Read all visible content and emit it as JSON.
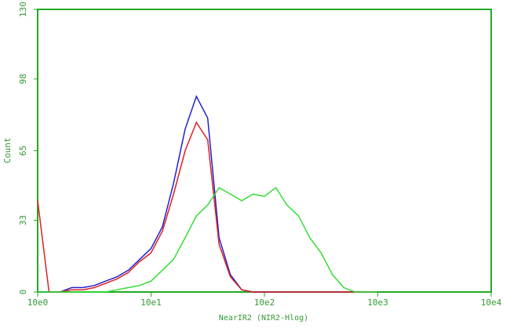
{
  "chart_data": {
    "type": "line",
    "x_label": "NearIR2 (NIR2-Hlog)",
    "y_label": "Count",
    "x": [
      1,
      1.26,
      1.58,
      2,
      2.51,
      3.16,
      3.98,
      5.01,
      6.31,
      7.94,
      10,
      12.6,
      15.8,
      20,
      25.1,
      31.6,
      39.8,
      50.1,
      63.1,
      79.4,
      100,
      126,
      158,
      200,
      251,
      316,
      398,
      501,
      631,
      794,
      1000
    ],
    "series": [
      {
        "color": "#2222cc",
        "values": [
          0,
          0,
          0,
          2,
          2,
          3,
          5,
          7,
          10,
          15,
          20,
          30,
          50,
          75,
          90,
          80,
          25,
          8,
          1,
          0,
          0,
          0,
          0,
          0,
          0,
          0,
          0,
          0,
          0,
          0,
          0
        ]
      },
      {
        "color": "#dd2222",
        "values": [
          42,
          0,
          0,
          1,
          1,
          2,
          4,
          6,
          9,
          14,
          18,
          28,
          45,
          65,
          78,
          70,
          22,
          7,
          1,
          0,
          0,
          0,
          0,
          0,
          0,
          0,
          0,
          0,
          0,
          0,
          0
        ]
      },
      {
        "color": "#33dd33",
        "values": [
          0,
          0,
          0,
          0,
          0,
          0,
          0,
          1,
          2,
          3,
          5,
          10,
          15,
          25,
          35,
          40,
          48,
          45,
          42,
          45,
          44,
          48,
          40,
          35,
          25,
          18,
          8,
          2,
          0,
          0,
          0
        ]
      }
    ],
    "xlim": [
      1,
      10000
    ],
    "log_x": true,
    "xticks": [
      {
        "value": 1,
        "label": "10e0"
      },
      {
        "value": 10,
        "label": "10e1"
      },
      {
        "value": 100,
        "label": "10e2"
      },
      {
        "value": 1000,
        "label": "10e3"
      },
      {
        "value": 10000,
        "label": "10e4"
      }
    ],
    "ylim": [
      0,
      130
    ],
    "yticks": [
      0,
      33,
      65,
      98,
      130
    ],
    "axis_color": "#22aa22"
  }
}
